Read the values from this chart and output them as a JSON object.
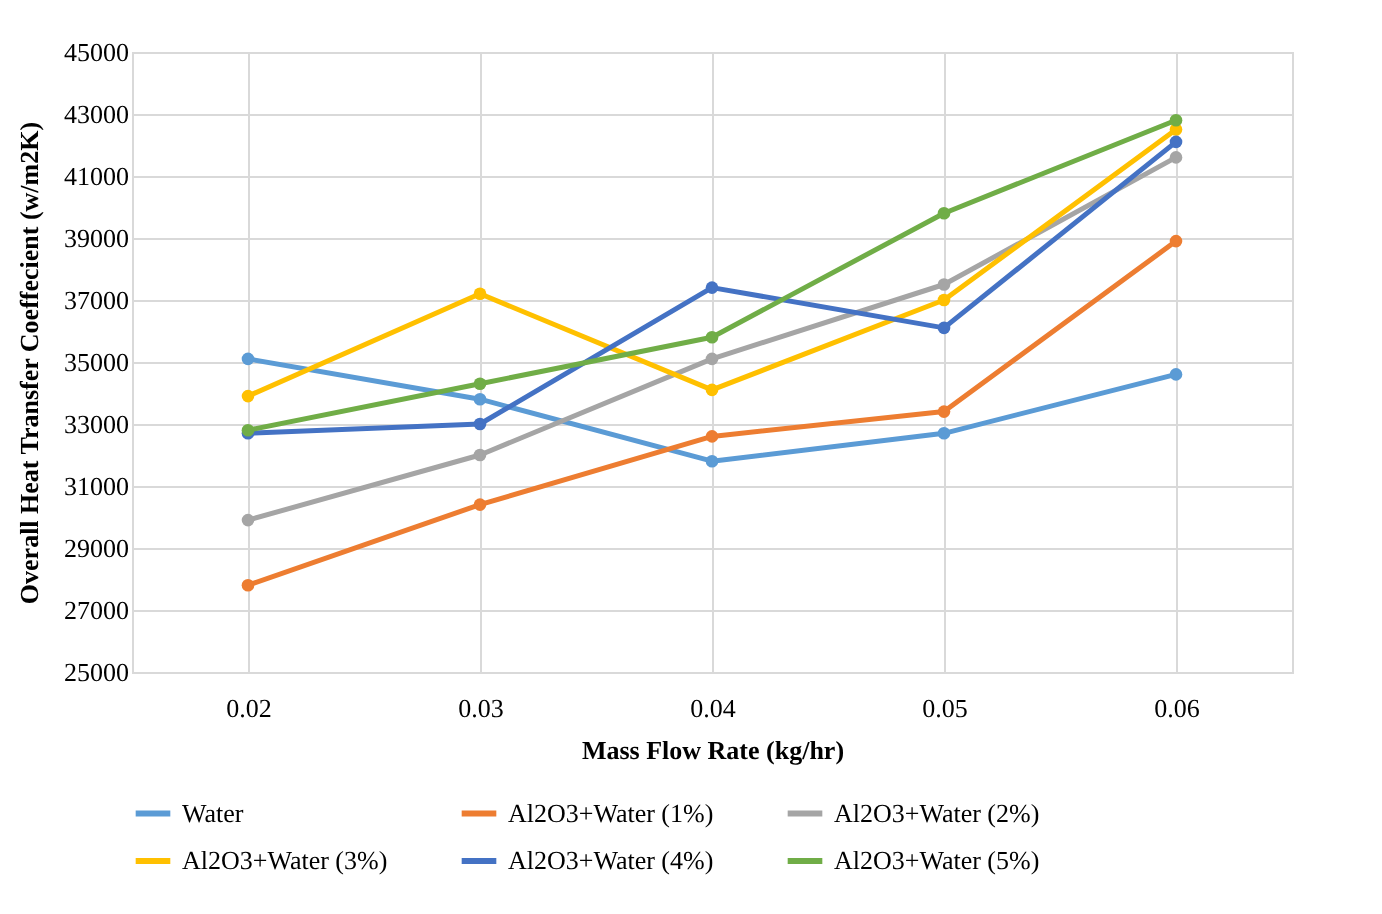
{
  "chart_data": {
    "type": "line",
    "xlabel": "Mass Flow Rate (kg/hr)",
    "ylabel": "Overall Heat Transfer Coeffecient (w/m2K)",
    "categories": [
      "0.02",
      "0.03",
      "0.04",
      "0.05",
      "0.06"
    ],
    "ylim": [
      25000,
      45000
    ],
    "yticks": [
      25000,
      27000,
      29000,
      31000,
      33000,
      35000,
      37000,
      39000,
      41000,
      43000,
      45000
    ],
    "grid": true,
    "legend": "bottom",
    "marker": "circle",
    "line_style": "solid",
    "series": [
      {
        "name": "Water",
        "color": "#5b9bd5",
        "values": [
          35100,
          33800,
          31800,
          32700,
          34600
        ]
      },
      {
        "name": "Al2O3+Water (1%)",
        "color": "#ed7d31",
        "values": [
          27800,
          30400,
          32600,
          33400,
          38900
        ]
      },
      {
        "name": "Al2O3+Water (2%)",
        "color": "#a5a5a5",
        "values": [
          29900,
          32000,
          35100,
          37500,
          41600
        ]
      },
      {
        "name": "Al2O3+Water (3%)",
        "color": "#ffc000",
        "values": [
          33900,
          37200,
          34100,
          37000,
          42500
        ]
      },
      {
        "name": "Al2O3+Water (4%)",
        "color": "#4472c4",
        "values": [
          32700,
          33000,
          37400,
          36100,
          42100
        ]
      },
      {
        "name": "Al2O3+Water (5%)",
        "color": "#70ad47",
        "values": [
          32800,
          34300,
          35800,
          39800,
          42800
        ]
      }
    ]
  }
}
